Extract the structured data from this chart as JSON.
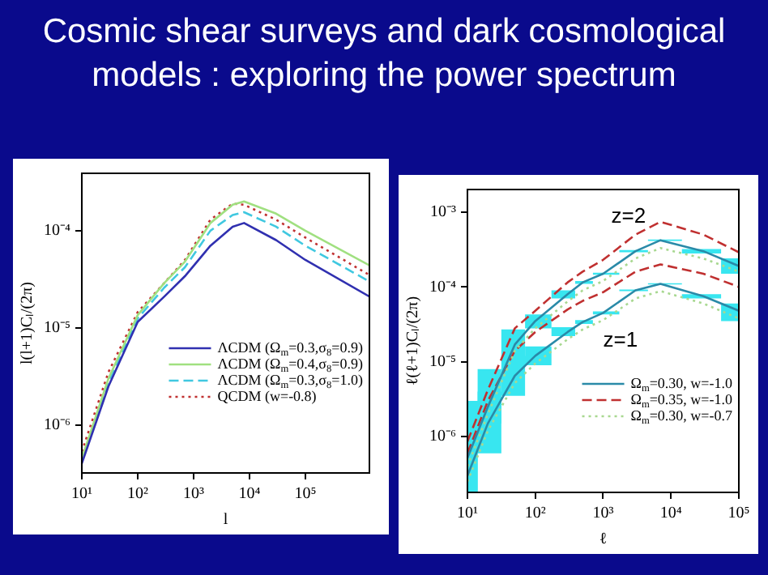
{
  "chart_data": [
    {
      "type": "line",
      "title": "Cosmic shear surveys and dark cosmological models : exploring the power spectrum",
      "xlabel": "l",
      "ylabel": "l(l+1)Cₗ/(2π)",
      "log": "xy",
      "grid": false,
      "marker": "none",
      "legend": "bottom right",
      "xlim": [
        10,
        1400000
      ],
      "xticks": [
        {
          "value": 10,
          "label": "10¹"
        },
        {
          "value": 100,
          "label": "10²"
        },
        {
          "value": 1000,
          "label": "10³"
        },
        {
          "value": 10000,
          "label": "10⁴"
        },
        {
          "value": 100000,
          "label": "10⁵"
        }
      ],
      "ylim": [
        3.2e-07,
        0.00039
      ],
      "yticks": [
        {
          "value": 1e-06,
          "label": "10⁻⁶"
        },
        {
          "value": 1e-05,
          "label": "10⁻⁵"
        },
        {
          "value": 0.0001,
          "label": "10⁻⁴"
        }
      ],
      "x": [
        10,
        30,
        100,
        300,
        700,
        2000,
        5000,
        8000,
        30000,
        100000,
        1400000
      ],
      "series": [
        {
          "name": "ΛCDM (Ω$_{m}$=0.3,σ$_{8}$=0.9)",
          "color": "#3030b0",
          "line_style": "solid",
          "values": [
            4e-07,
            2.5e-06,
            1.15e-05,
            2.1e-05,
            3.4e-05,
            7e-05,
            0.00011,
            0.00012,
            8e-05,
            5e-05,
            2.1e-05
          ]
        },
        {
          "name": "ΛCDM (Ω$_{m}$=0.4,σ$_{8}$=0.9)",
          "color": "#a0e080",
          "line_style": "solid",
          "values": [
            4.5e-07,
            3e-06,
            1.35e-05,
            2.9e-05,
            4.8e-05,
            0.00012,
            0.000185,
            0.0002,
            0.00015,
            0.0001,
            4.4e-05
          ]
        },
        {
          "name": "ΛCDM (Ω$_{m}$=0.3,σ$_{8}$=1.0)",
          "color": "#40c8e0",
          "line_style": "dashed",
          "values": [
            4.2e-07,
            2.8e-06,
            1.25e-05,
            2.6e-05,
            4.2e-05,
            0.0001,
            0.000145,
            0.000155,
            0.00011,
            7e-05,
            3e-05
          ]
        },
        {
          "name": "QCDM (w=-0.8)",
          "color": "#c03030",
          "line_style": "dotted",
          "values": [
            5.3e-07,
            3.5e-06,
            1.45e-05,
            2.9e-05,
            5e-05,
            0.00013,
            0.00019,
            0.000185,
            0.00013,
            8.5e-05,
            3.5e-05
          ]
        }
      ]
    },
    {
      "type": "line",
      "xlabel": "ℓ",
      "ylabel": "ℓ(ℓ+1)Cₗ/(2π)",
      "log": "xy",
      "grid": false,
      "marker": "none",
      "legend": "bottom right",
      "xlim": [
        10,
        100000
      ],
      "xticks": [
        {
          "value": 10,
          "label": "10¹"
        },
        {
          "value": 100,
          "label": "10²"
        },
        {
          "value": 1000,
          "label": "10³"
        },
        {
          "value": 10000,
          "label": "10⁴"
        },
        {
          "value": 100000,
          "label": "10⁵"
        }
      ],
      "ylim": [
        1.8e-07,
        0.002
      ],
      "yticks": [
        {
          "value": 1e-06,
          "label": "10⁻⁶"
        },
        {
          "value": 1e-05,
          "label": "10⁻⁵"
        },
        {
          "value": 0.0001,
          "label": "10⁻⁴"
        },
        {
          "value": 0.001,
          "label": "10⁻³"
        }
      ],
      "x": [
        10,
        20,
        50,
        100,
        300,
        500,
        1000,
        3000,
        7000,
        30000,
        100000
      ],
      "annotations": [
        "z=2",
        "z=1"
      ],
      "series": [
        {
          "name": "Ω$_{m}$=0.30, w=-1.0",
          "color": "#2a8aa8",
          "line_style": "solid",
          "values": [
            5.2e-07,
            2.5e-06,
            1.7e-05,
            3.5e-05,
            8e-05,
            0.000115,
            0.00015,
            0.0003,
            0.00042,
            0.0003,
            0.00019
          ],
          "lower": [
            1.8e-07,
            1.5e-06,
            1.1e-05,
            2.8e-05,
            7e-05,
            0.00011,
            0.000145,
            0.00029,
            0.00041,
            0.00028,
            0.00015
          ],
          "upper": [
            3e-06,
            8e-06,
            2.7e-05,
            4.3e-05,
            9e-05,
            0.00012,
            0.000155,
            0.00031,
            0.00043,
            0.00032,
            0.00024
          ]
        },
        {
          "name": "Ω$_{m}$=0.35, w=-1.0",
          "color": "#c03030",
          "line_style": "dashed",
          "values": [
            8.6e-07,
            4.2e-06,
            2.8e-05,
            4.8e-05,
            0.000115,
            0.00016,
            0.00023,
            0.0005,
            0.00074,
            0.0005,
            0.00029
          ]
        },
        {
          "name": "Ω$_{m}$=0.30, w=-0.7",
          "color": "#a8d890",
          "line_style": "dotted",
          "values": [
            4e-07,
            2e-06,
            1.4e-05,
            2.8e-05,
            6.4e-05,
            9e-05,
            0.00012,
            0.00024,
            0.00033,
            0.00024,
            0.00016
          ]
        },
        {
          "color": "#2a8aa8",
          "line_style": "solid",
          "values": [
            3e-07,
            1.5e-06,
            6.5e-06,
            1.2e-05,
            2.5e-05,
            3.4e-05,
            4.5e-05,
            9e-05,
            0.00011,
            7.5e-05,
            4.8e-05
          ],
          "lower": [
            1.8e-07,
            6e-07,
            3.5e-06,
            9e-06,
            2.2e-05,
            3.2e-05,
            4.3e-05,
            8.8e-05,
            0.000108,
            7e-05,
            3.5e-05
          ],
          "upper": [
            3e-06,
            4e-06,
            1.2e-05,
            1.6e-05,
            2.9e-05,
            3.6e-05,
            4.7e-05,
            9.2e-05,
            0.000112,
            8e-05,
            6e-05
          ]
        },
        {
          "color": "#c03030",
          "line_style": "dashed",
          "values": [
            6e-07,
            3e-06,
            1.4e-05,
            2.5e-05,
            5e-05,
            6.5e-05,
            8.5e-05,
            0.00016,
            0.0002,
            0.00015,
            0.0001
          ]
        },
        {
          "color": "#a8d890",
          "line_style": "dotted",
          "values": [
            2.5e-07,
            1.2e-06,
            5.2e-06,
            9.5e-06,
            2e-05,
            2.7e-05,
            3.6e-05,
            7e-05,
            8.8e-05,
            6e-05,
            3.8e-05
          ]
        }
      ]
    }
  ]
}
